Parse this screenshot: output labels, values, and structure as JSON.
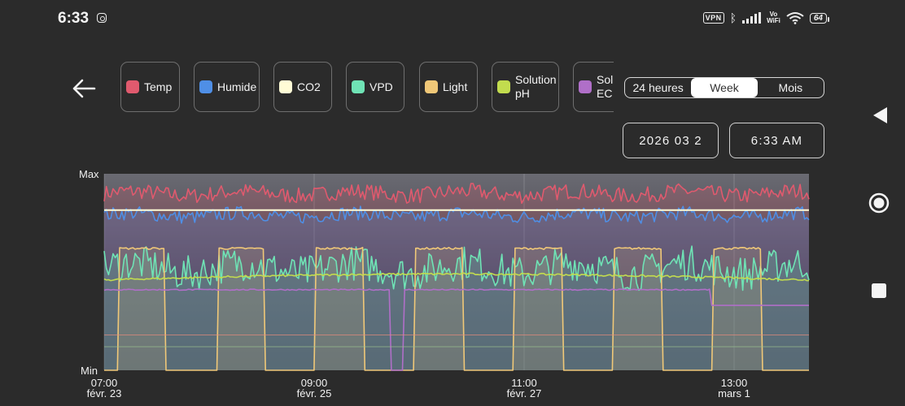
{
  "status_bar": {
    "time": "6:33",
    "vpn": "VPN",
    "vowifi_top": "Vo",
    "vowifi_bottom": "WiFi",
    "battery": "64"
  },
  "series": [
    {
      "label": "Temp",
      "color": "#e05a6e"
    },
    {
      "label": "Humide",
      "color": "#4f8fe6"
    },
    {
      "label": "CO2",
      "color": "#fffcd6"
    },
    {
      "label": "VPD",
      "color": "#6fe3b5"
    },
    {
      "label": "Light",
      "color": "#f0c878"
    },
    {
      "label": "Solution pH",
      "color": "#c2dc4e"
    },
    {
      "label": "Solution EC",
      "color": "#b06fc8"
    }
  ],
  "range": {
    "options": [
      "24 heures",
      "Week",
      "Mois"
    ],
    "selected": "Week"
  },
  "date_picker": {
    "value": "2026 03 2"
  },
  "time_picker": {
    "value": "6:33 AM"
  },
  "chart_data": {
    "type": "line",
    "y_max_label": "Max",
    "y_min_label": "Min",
    "x_ticks": [
      {
        "time": "07:00",
        "date": "févr. 23"
      },
      {
        "time": "09:00",
        "date": "févr. 25"
      },
      {
        "time": "11:00",
        "date": "févr. 27"
      },
      {
        "time": "13:00",
        "date": "mars 1"
      }
    ],
    "grid": true,
    "series": [
      {
        "name": "Temp",
        "color": "#e05a6e",
        "pattern": "noisy",
        "level": 0.9,
        "amp": 0.04
      },
      {
        "name": "Humide",
        "color": "#4f8fe6",
        "pattern": "noisy",
        "level": 0.79,
        "amp": 0.035
      },
      {
        "name": "CO2",
        "color": "#fffcd6",
        "pattern": "flat",
        "level": 0.815
      },
      {
        "name": "VPD",
        "color": "#6fe3b5",
        "pattern": "noisy",
        "level": 0.52,
        "amp": 0.09
      },
      {
        "name": "Light",
        "color": "#f0c878",
        "pattern": "square",
        "low": 0.0,
        "high": 0.62
      },
      {
        "name": "Solution pH",
        "color": "#c2dc4e",
        "pattern": "drift",
        "start": 0.46,
        "end": 0.49
      },
      {
        "name": "Solution EC",
        "color": "#b06fc8",
        "pattern": "step",
        "level": 0.41
      }
    ]
  }
}
